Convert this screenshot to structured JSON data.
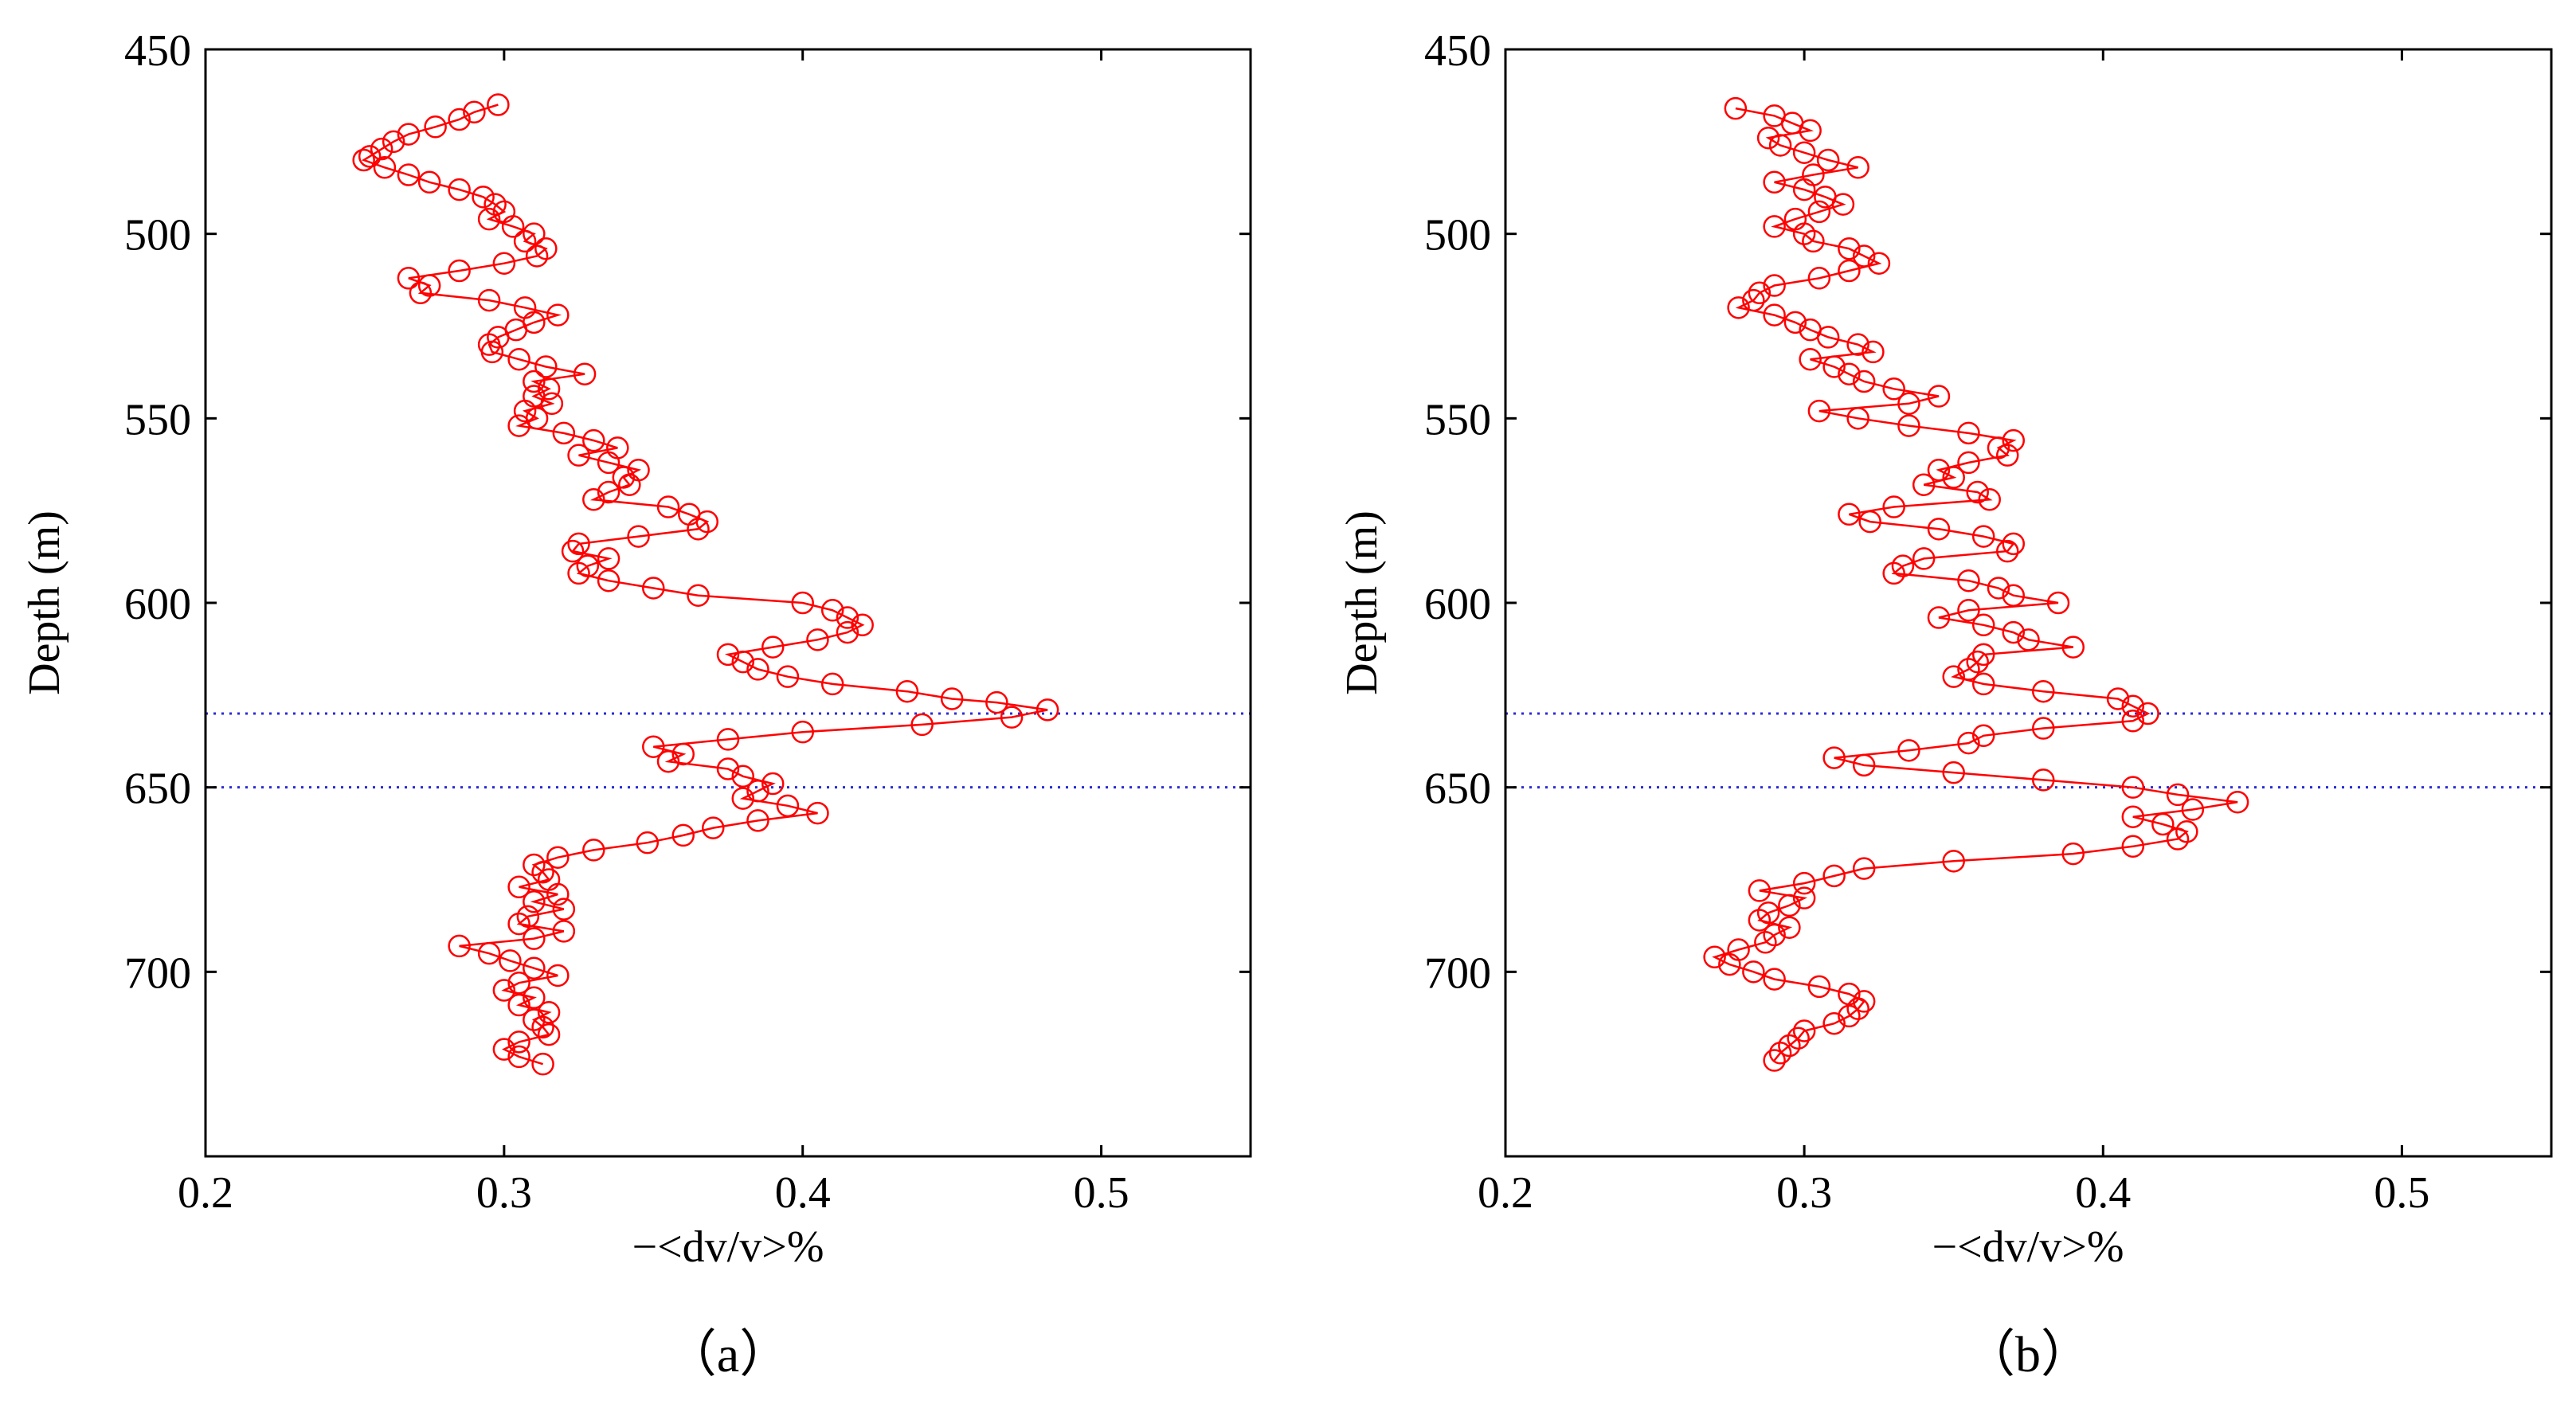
{
  "chart_data": [
    {
      "type": "line",
      "panel_label": "（a）",
      "title": "",
      "xlabel": "−<dv/v>%",
      "ylabel": "Depth (m)",
      "xlim": [
        0.2,
        0.55
      ],
      "ylim": [
        450,
        750
      ],
      "y_inverted": true,
      "xticks": [
        0.2,
        0.3,
        0.4,
        0.5
      ],
      "xtick_labels": [
        "0.2",
        "0.3",
        "0.4",
        "0.5"
      ],
      "yticks": [
        450,
        500,
        550,
        600,
        650,
        700
      ],
      "ytick_labels": [
        "450",
        "500",
        "550",
        "600",
        "650",
        "700"
      ],
      "grid": false,
      "reference_lines": [
        630,
        650
      ],
      "series": [
        {
          "name": "dv/v",
          "color": "#ff0000",
          "marker": "open-circle",
          "depth": [
            465,
            467,
            469,
            471,
            473,
            475,
            477,
            479,
            480,
            482,
            484,
            486,
            488,
            490,
            492,
            494,
            496,
            498,
            500,
            502,
            504,
            506,
            508,
            510,
            512,
            514,
            516,
            518,
            520,
            522,
            524,
            526,
            528,
            530,
            532,
            534,
            536,
            538,
            540,
            542,
            544,
            546,
            548,
            550,
            552,
            554,
            556,
            558,
            560,
            562,
            564,
            566,
            568,
            570,
            572,
            574,
            576,
            578,
            580,
            582,
            584,
            586,
            588,
            590,
            592,
            594,
            596,
            598,
            600,
            602,
            604,
            606,
            608,
            610,
            612,
            614,
            616,
            618,
            620,
            622,
            624,
            626,
            627,
            629,
            631,
            633,
            635,
            637,
            639,
            641,
            643,
            645,
            647,
            649,
            651,
            653,
            655,
            657,
            659,
            661,
            663,
            665,
            667,
            669,
            671,
            673,
            675,
            677,
            679,
            681,
            683,
            685,
            687,
            689,
            691,
            693,
            695,
            697,
            699,
            701,
            703,
            705,
            707,
            709,
            711,
            713,
            715,
            717,
            719,
            721,
            723,
            725
          ],
          "values": [
            0.298,
            0.29,
            0.285,
            0.277,
            0.268,
            0.263,
            0.259,
            0.255,
            0.253,
            0.26,
            0.268,
            0.275,
            0.285,
            0.293,
            0.297,
            0.3,
            0.295,
            0.303,
            0.31,
            0.307,
            0.314,
            0.311,
            0.3,
            0.285,
            0.268,
            0.275,
            0.272,
            0.295,
            0.307,
            0.318,
            0.31,
            0.304,
            0.298,
            0.295,
            0.296,
            0.305,
            0.314,
            0.327,
            0.31,
            0.315,
            0.31,
            0.316,
            0.307,
            0.311,
            0.305,
            0.32,
            0.33,
            0.338,
            0.325,
            0.335,
            0.345,
            0.34,
            0.342,
            0.335,
            0.33,
            0.355,
            0.362,
            0.368,
            0.365,
            0.345,
            0.325,
            0.323,
            0.335,
            0.328,
            0.325,
            0.335,
            0.35,
            0.365,
            0.4,
            0.41,
            0.415,
            0.42,
            0.415,
            0.405,
            0.39,
            0.375,
            0.38,
            0.385,
            0.395,
            0.41,
            0.435,
            0.45,
            0.465,
            0.482,
            0.47,
            0.44,
            0.4,
            0.375,
            0.35,
            0.36,
            0.355,
            0.375,
            0.38,
            0.39,
            0.385,
            0.38,
            0.395,
            0.405,
            0.385,
            0.37,
            0.36,
            0.348,
            0.33,
            0.318,
            0.31,
            0.313,
            0.315,
            0.305,
            0.318,
            0.31,
            0.32,
            0.308,
            0.305,
            0.32,
            0.31,
            0.285,
            0.295,
            0.302,
            0.31,
            0.318,
            0.305,
            0.3,
            0.31,
            0.305,
            0.315,
            0.31,
            0.313,
            0.315,
            0.305,
            0.3,
            0.305,
            0.313
          ]
        }
      ]
    },
    {
      "type": "line",
      "panel_label": "（b）",
      "title": "",
      "xlabel": "−<dv/v>%",
      "ylabel": "Depth (m)",
      "xlim": [
        0.2,
        0.55
      ],
      "ylim": [
        450,
        750
      ],
      "y_inverted": true,
      "xticks": [
        0.2,
        0.3,
        0.4,
        0.5
      ],
      "xtick_labels": [
        "0.2",
        "0.3",
        "0.4",
        "0.5"
      ],
      "yticks": [
        450,
        500,
        550,
        600,
        650,
        700
      ],
      "ytick_labels": [
        "450",
        "500",
        "550",
        "600",
        "650",
        "700"
      ],
      "grid": false,
      "reference_lines": [
        630,
        650
      ],
      "series": [
        {
          "name": "dv/v",
          "color": "#ff0000",
          "marker": "open-circle",
          "depth": [
            466,
            468,
            470,
            472,
            474,
            476,
            478,
            480,
            482,
            484,
            486,
            488,
            490,
            492,
            494,
            496,
            498,
            500,
            502,
            504,
            506,
            508,
            510,
            512,
            514,
            516,
            518,
            520,
            522,
            524,
            526,
            528,
            530,
            532,
            534,
            536,
            538,
            540,
            542,
            544,
            546,
            548,
            550,
            552,
            554,
            556,
            558,
            560,
            562,
            564,
            566,
            568,
            570,
            572,
            574,
            576,
            578,
            580,
            582,
            584,
            586,
            588,
            590,
            592,
            594,
            596,
            598,
            600,
            602,
            604,
            606,
            608,
            610,
            612,
            614,
            616,
            618,
            620,
            622,
            624,
            626,
            628,
            630,
            632,
            634,
            636,
            638,
            640,
            642,
            644,
            646,
            648,
            650,
            652,
            654,
            656,
            658,
            660,
            662,
            664,
            666,
            668,
            670,
            672,
            674,
            676,
            678,
            680,
            682,
            684,
            686,
            688,
            690,
            692,
            694,
            696,
            698,
            700,
            702,
            704,
            706,
            708,
            710,
            712,
            714,
            716,
            718,
            720,
            722,
            724
          ],
          "values": [
            0.277,
            0.29,
            0.296,
            0.302,
            0.288,
            0.292,
            0.3,
            0.308,
            0.318,
            0.303,
            0.29,
            0.3,
            0.307,
            0.313,
            0.305,
            0.297,
            0.29,
            0.3,
            0.303,
            0.315,
            0.32,
            0.325,
            0.315,
            0.305,
            0.29,
            0.285,
            0.283,
            0.278,
            0.29,
            0.297,
            0.302,
            0.308,
            0.318,
            0.323,
            0.302,
            0.31,
            0.315,
            0.32,
            0.33,
            0.345,
            0.335,
            0.305,
            0.318,
            0.335,
            0.355,
            0.37,
            0.365,
            0.368,
            0.355,
            0.345,
            0.35,
            0.34,
            0.358,
            0.362,
            0.33,
            0.315,
            0.322,
            0.345,
            0.36,
            0.37,
            0.368,
            0.34,
            0.333,
            0.33,
            0.355,
            0.365,
            0.37,
            0.385,
            0.355,
            0.345,
            0.36,
            0.37,
            0.375,
            0.39,
            0.36,
            0.358,
            0.355,
            0.35,
            0.36,
            0.38,
            0.405,
            0.41,
            0.415,
            0.41,
            0.38,
            0.36,
            0.355,
            0.335,
            0.31,
            0.32,
            0.35,
            0.38,
            0.41,
            0.425,
            0.445,
            0.43,
            0.41,
            0.42,
            0.428,
            0.425,
            0.41,
            0.39,
            0.35,
            0.32,
            0.31,
            0.3,
            0.285,
            0.3,
            0.295,
            0.288,
            0.285,
            0.295,
            0.29,
            0.287,
            0.278,
            0.27,
            0.275,
            0.283,
            0.29,
            0.305,
            0.315,
            0.32,
            0.318,
            0.315,
            0.31,
            0.3,
            0.298,
            0.295,
            0.292,
            0.29
          ]
        }
      ]
    }
  ]
}
